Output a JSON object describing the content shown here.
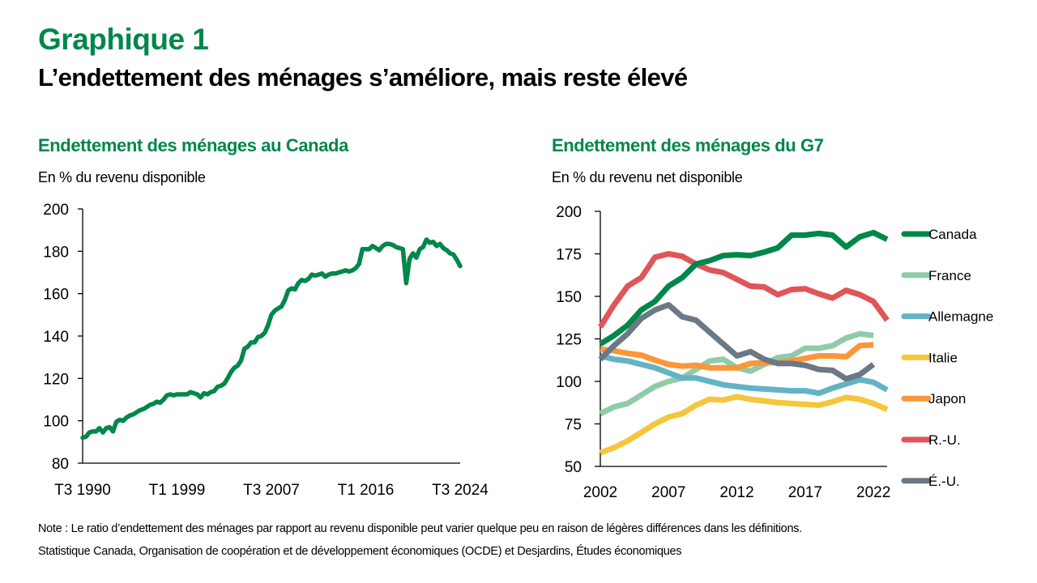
{
  "header": {
    "title": "Graphique 1",
    "subtitle": "L’endettement des ménages s’améliore, mais reste élevé"
  },
  "footer": {
    "note": "Note : Le ratio d’endettement des ménages par rapport au revenu disponible peut varier quelque peu en raison de légères différences dans les définitions.",
    "source": "Statistique Canada, Organisation de coopération et de développement économiques (OCDE) et Desjardins, Études économiques"
  },
  "chart_data": [
    {
      "type": "line",
      "title": "Endettement des ménages au Canada",
      "ylabel": "En % du revenu disponible",
      "xlabel": "",
      "ylim": [
        80,
        200
      ],
      "yticks": [
        80,
        100,
        120,
        140,
        160,
        180,
        200
      ],
      "xtick_labels": [
        "T3 1990",
        "T1 1999",
        "T3 2007",
        "T1 2016",
        "T3 2024"
      ],
      "xtick_positions": [
        0,
        34,
        68,
        102,
        136
      ],
      "grid": false,
      "legend": "none",
      "color": "#00874a",
      "x_start": "T3 1990",
      "x_end": "T3 2024",
      "frequency": "quarterly",
      "series": [
        {
          "name": "Canada",
          "values": [
            92.0,
            92.5,
            94.5,
            95.0,
            95.0,
            96.5,
            94.5,
            96.5,
            97.0,
            95.0,
            99.5,
            100.5,
            100.0,
            101.5,
            102.5,
            103.0,
            104.0,
            105.0,
            105.5,
            106.5,
            107.5,
            108.0,
            109.0,
            108.5,
            110.0,
            112.0,
            112.5,
            112.0,
            112.5,
            112.5,
            112.5,
            112.5,
            113.5,
            113.0,
            112.5,
            111.0,
            113.0,
            112.5,
            113.5,
            114.0,
            116.0,
            116.5,
            117.5,
            120.0,
            123.0,
            125.0,
            126.0,
            128.5,
            134.0,
            135.0,
            137.0,
            137.0,
            139.5,
            140.0,
            141.5,
            145.0,
            150.0,
            152.0,
            153.0,
            154.0,
            157.0,
            161.5,
            162.5,
            162.0,
            165.0,
            166.5,
            166.0,
            167.0,
            169.0,
            168.5,
            169.0,
            169.5,
            168.0,
            169.0,
            169.5,
            169.5,
            170.0,
            170.5,
            171.0,
            170.5,
            171.0,
            172.0,
            174.0,
            181.0,
            181.0,
            181.0,
            182.5,
            181.5,
            180.5,
            182.5,
            183.5,
            183.5,
            183.0,
            182.0,
            181.5,
            181.0,
            165.0,
            176.5,
            179.0,
            177.0,
            181.0,
            182.0,
            185.5,
            184.0,
            184.5,
            182.5,
            183.5,
            181.5,
            180.5,
            179.0,
            178.5,
            176.0,
            173.0
          ]
        }
      ]
    },
    {
      "type": "line",
      "title": "Endettement des ménages du G7",
      "ylabel": "En % du revenu net disponible",
      "xlabel": "",
      "ylim": [
        50,
        200
      ],
      "yticks": [
        50,
        75,
        100,
        125,
        150,
        175,
        200
      ],
      "xticks": [
        2002,
        2007,
        2012,
        2017,
        2022
      ],
      "x": [
        2002,
        2003,
        2004,
        2005,
        2006,
        2007,
        2008,
        2009,
        2010,
        2011,
        2012,
        2013,
        2014,
        2015,
        2016,
        2017,
        2018,
        2019,
        2020,
        2021,
        2022,
        2023
      ],
      "grid": false,
      "legend": "right",
      "series": [
        {
          "name": "Canada",
          "color": "#00874a",
          "values": [
            122,
            127,
            133,
            142,
            147,
            156,
            161,
            169,
            171,
            174,
            174.5,
            174,
            176,
            178.5,
            186,
            186,
            187,
            186,
            179,
            185,
            187.5,
            183.5
          ]
        },
        {
          "name": "France",
          "color": "#8fcba8",
          "values": [
            81,
            85,
            87,
            92,
            97,
            100,
            102,
            107,
            112,
            113,
            108,
            106,
            110,
            114,
            115,
            119.5,
            119.5,
            121,
            125.5,
            128,
            127,
            null
          ]
        },
        {
          "name": "Allemagne",
          "color": "#64b3c5",
          "values": [
            115,
            113,
            112,
            110,
            108,
            105,
            102,
            102,
            100,
            98,
            97,
            96,
            95.5,
            95,
            94.5,
            94.5,
            93,
            96,
            98.5,
            101,
            99.5,
            95
          ]
        },
        {
          "name": "Italie",
          "color": "#f5c63c",
          "values": [
            58,
            61,
            65,
            70,
            75,
            79,
            81,
            86,
            89.5,
            89,
            91,
            89.5,
            88.5,
            87.5,
            87,
            86.5,
            86,
            88,
            90.5,
            89.5,
            87,
            83.5
          ]
        },
        {
          "name": "Japon",
          "color": "#fb963a",
          "values": [
            119,
            118,
            116.5,
            115.5,
            112.5,
            110,
            109,
            109.5,
            108,
            108,
            108,
            110.5,
            111,
            111,
            112,
            113.5,
            115,
            115,
            114.5,
            121,
            121.5,
            null
          ]
        },
        {
          "name": "R.-U.",
          "color": "#e05558",
          "values": [
            132,
            145,
            156,
            161,
            173,
            175,
            173.5,
            169,
            165.5,
            164,
            160,
            156,
            155.5,
            151,
            154,
            154.5,
            151.5,
            149,
            153.5,
            151,
            147,
            136
          ]
        },
        {
          "name": "É.-U.",
          "color": "#6b7885",
          "values": [
            113,
            121,
            128,
            137,
            142,
            145,
            138,
            136,
            129,
            122,
            115,
            117.5,
            113,
            110.5,
            110.5,
            109.5,
            107,
            106.5,
            101.5,
            104,
            110,
            null
          ]
        }
      ]
    }
  ]
}
